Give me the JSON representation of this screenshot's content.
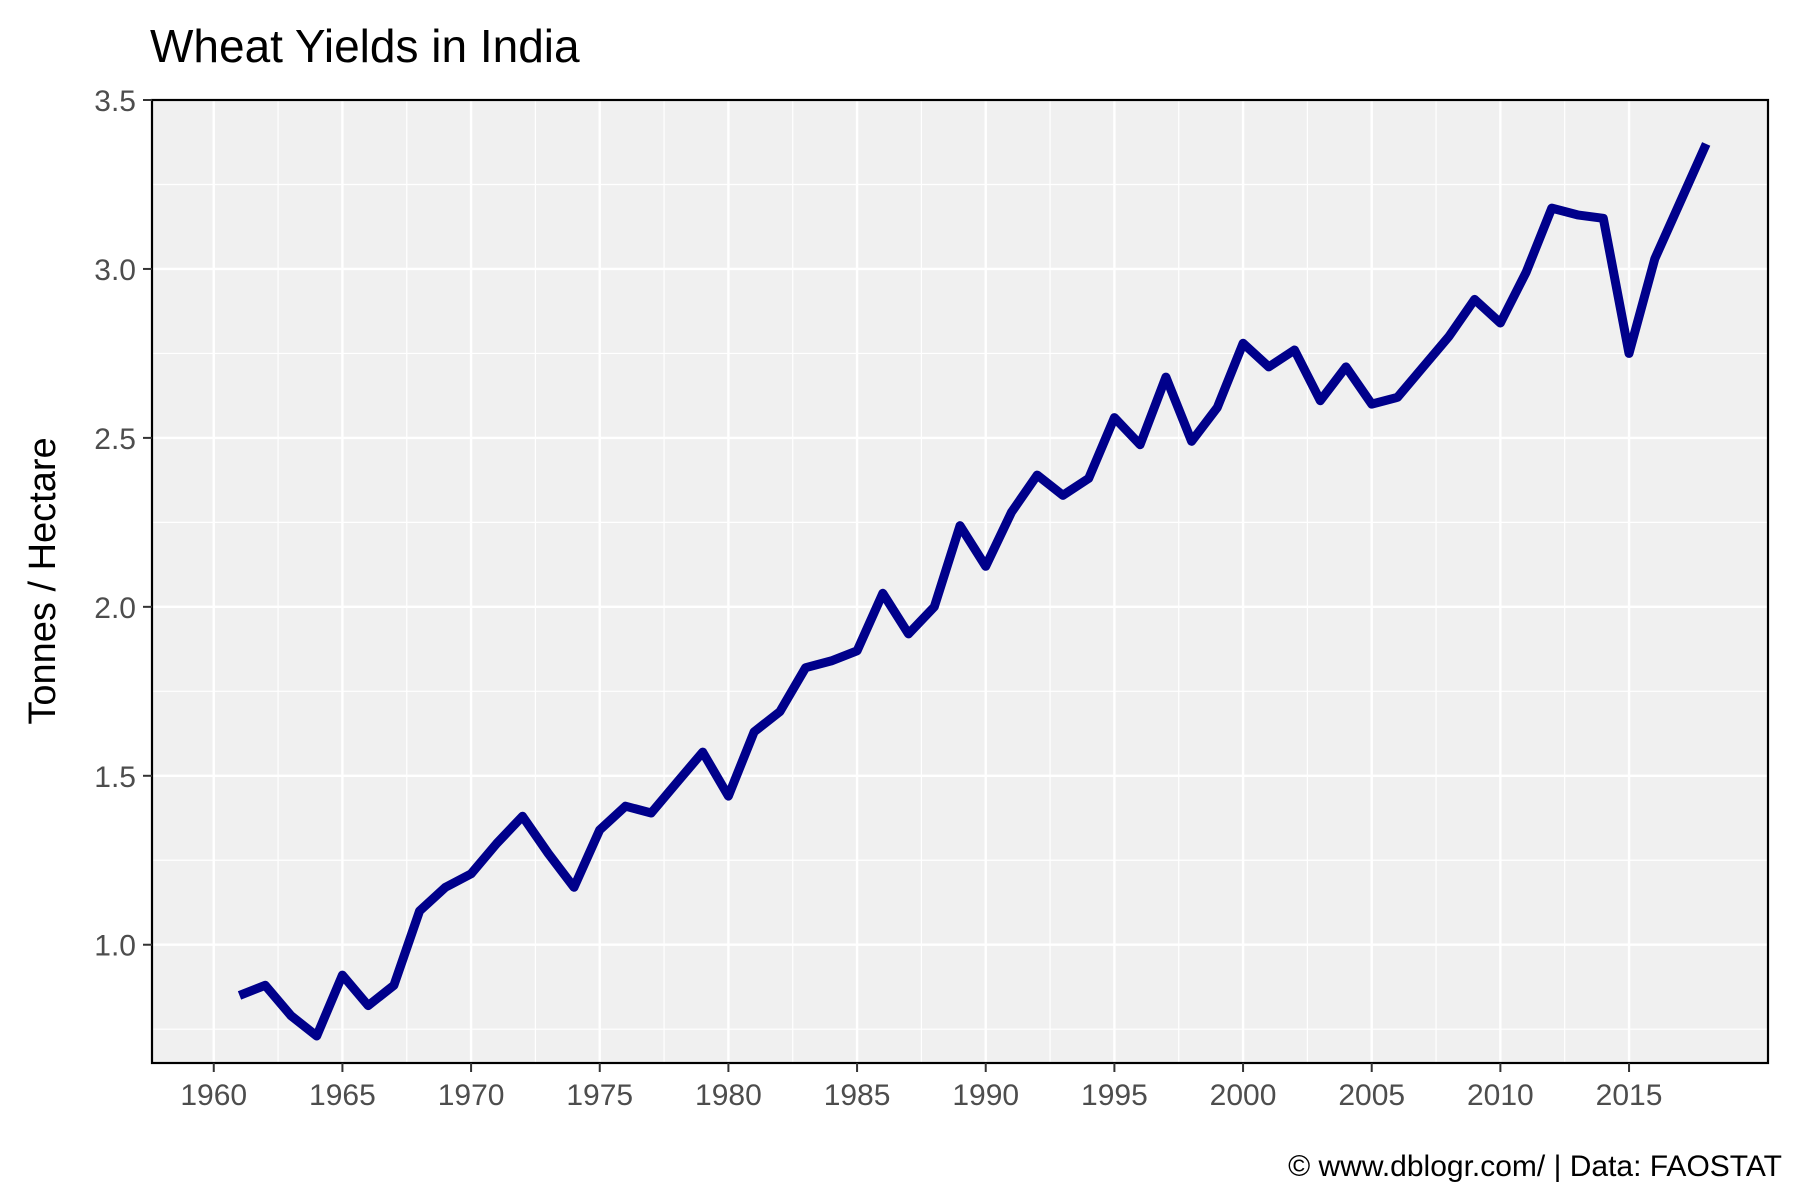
{
  "chart_data": {
    "type": "line",
    "title": "Wheat Yields in India",
    "xlabel": "",
    "ylabel": "Tonnes / Hectare",
    "caption": "© www.dblogr.com/  |  Data: FAOSTAT",
    "xlim": [
      1957.6,
      2020.4
    ],
    "ylim": [
      0.65,
      3.5
    ],
    "x_ticks": [
      1960,
      1965,
      1970,
      1975,
      1980,
      1985,
      1990,
      1995,
      2000,
      2005,
      2010,
      2015
    ],
    "y_ticks": [
      "1.0",
      "1.5",
      "2.0",
      "2.5",
      "3.0",
      "3.5"
    ],
    "grid": true,
    "line_color": "#00008b",
    "panel_color": "#f0f0f0",
    "series": [
      {
        "x": [
          1961,
          1962,
          1963,
          1964,
          1965,
          1966,
          1967,
          1968,
          1969,
          1970,
          1971,
          1972,
          1973,
          1974,
          1975,
          1976,
          1977,
          1978,
          1979,
          1980,
          1981,
          1982,
          1983,
          1984,
          1985,
          1986,
          1987,
          1988,
          1989,
          1990,
          1991,
          1992,
          1993,
          1994,
          1995,
          1996,
          1997,
          1998,
          1999,
          2000,
          2001,
          2002,
          2003,
          2004,
          2005,
          2006,
          2007,
          2008,
          2009,
          2010,
          2011,
          2012,
          2013,
          2014,
          2015,
          2016,
          2017,
          2018
        ],
        "values": [
          0.85,
          0.88,
          0.79,
          0.73,
          0.91,
          0.82,
          0.88,
          1.1,
          1.17,
          1.21,
          1.3,
          1.38,
          1.27,
          1.17,
          1.34,
          1.41,
          1.39,
          1.48,
          1.57,
          1.44,
          1.63,
          1.69,
          1.82,
          1.84,
          1.87,
          2.04,
          1.92,
          2.0,
          2.24,
          2.12,
          2.28,
          2.39,
          2.33,
          2.38,
          2.56,
          2.48,
          2.68,
          2.49,
          2.59,
          2.78,
          2.71,
          2.76,
          2.61,
          2.71,
          2.6,
          2.62,
          2.71,
          2.8,
          2.91,
          2.84,
          2.99,
          3.18,
          3.16,
          3.15,
          2.75,
          3.03,
          3.2,
          3.37
        ]
      }
    ]
  }
}
